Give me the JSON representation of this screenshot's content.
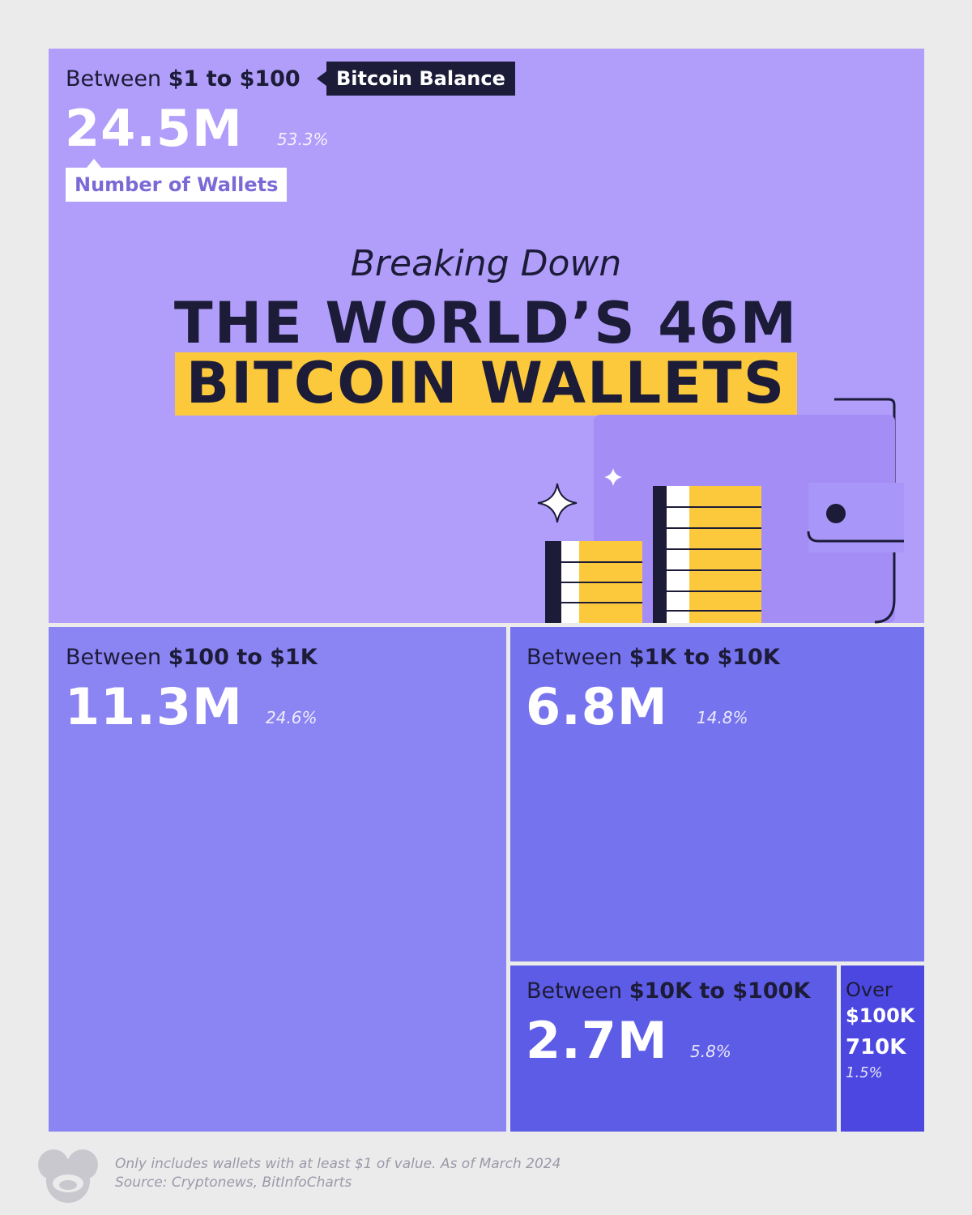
{
  "title": {
    "kicker": "Breaking Down",
    "line1": "THE WORLD’S 46M",
    "line2": "BITCOIN WALLETS"
  },
  "legend": {
    "balance_tag": "Bitcoin Balance",
    "wallets_tag": "Number of Wallets"
  },
  "colors": {
    "dark": "#1c1b38",
    "accent_yellow": "#fcc93d",
    "tile_1": "#b09efa",
    "tile_2": "#8b84f3",
    "tile_3": "#7673ee",
    "tile_4": "#5d5ce6",
    "tile_5": "#4b47e0"
  },
  "chart_data": {
    "type": "treemap",
    "total_label": "46M",
    "categories": [
      {
        "prefix": "Between ",
        "range": "$1 to $100",
        "count": 24.5,
        "count_label": "24.5M",
        "share": 53.3,
        "share_label": "53.3%"
      },
      {
        "prefix": "Between ",
        "range": "$100 to $1K",
        "count": 11.3,
        "count_label": "11.3M",
        "share": 24.6,
        "share_label": "24.6%"
      },
      {
        "prefix": "Between ",
        "range": "$1K to $10K",
        "count": 6.8,
        "count_label": "6.8M",
        "share": 14.8,
        "share_label": "14.8%"
      },
      {
        "prefix": "Between ",
        "range": "$10K to $100K",
        "count": 2.7,
        "count_label": "2.7M",
        "share": 5.8,
        "share_label": "5.8%"
      },
      {
        "prefix": "Over",
        "range": "$100K",
        "count": 0.71,
        "count_label": "710K",
        "share": 1.5,
        "share_label": "1.5%"
      }
    ]
  },
  "footer": {
    "note": "Only includes wallets with at least $1 of value. As of March 2024",
    "source": "Source: Cryptonews, BitInfoCharts"
  }
}
